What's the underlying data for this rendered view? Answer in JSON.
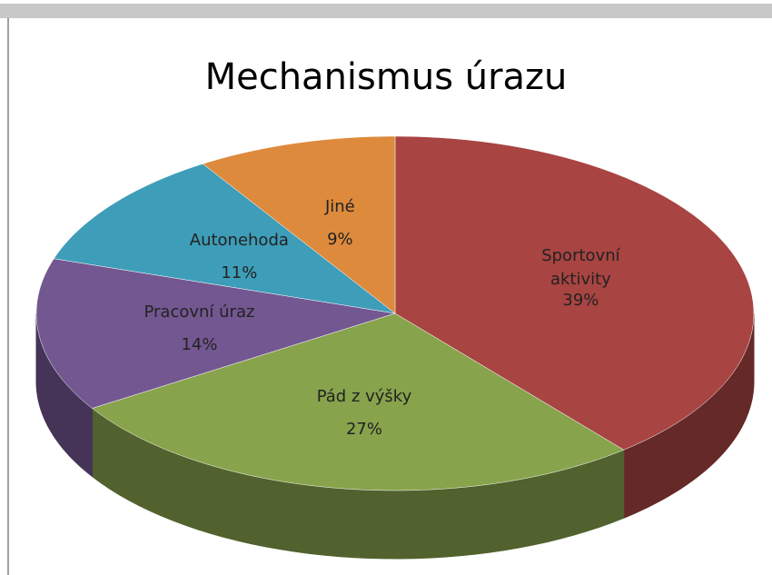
{
  "chart_data": {
    "type": "pie",
    "title": "Mechanismus úrazu",
    "categories": [
      "Sportovní aktivity",
      "Pád z výšky",
      "Pracovní úraz",
      "Autonehoda",
      "Jiné"
    ],
    "values": [
      39,
      27,
      14,
      11,
      9
    ],
    "value_labels": [
      "39%",
      "27%",
      "14%",
      "11%",
      "9%"
    ],
    "colors": [
      "#a84442",
      "#87a34c",
      "#735791",
      "#3e9db8",
      "#dd8a3c"
    ]
  }
}
